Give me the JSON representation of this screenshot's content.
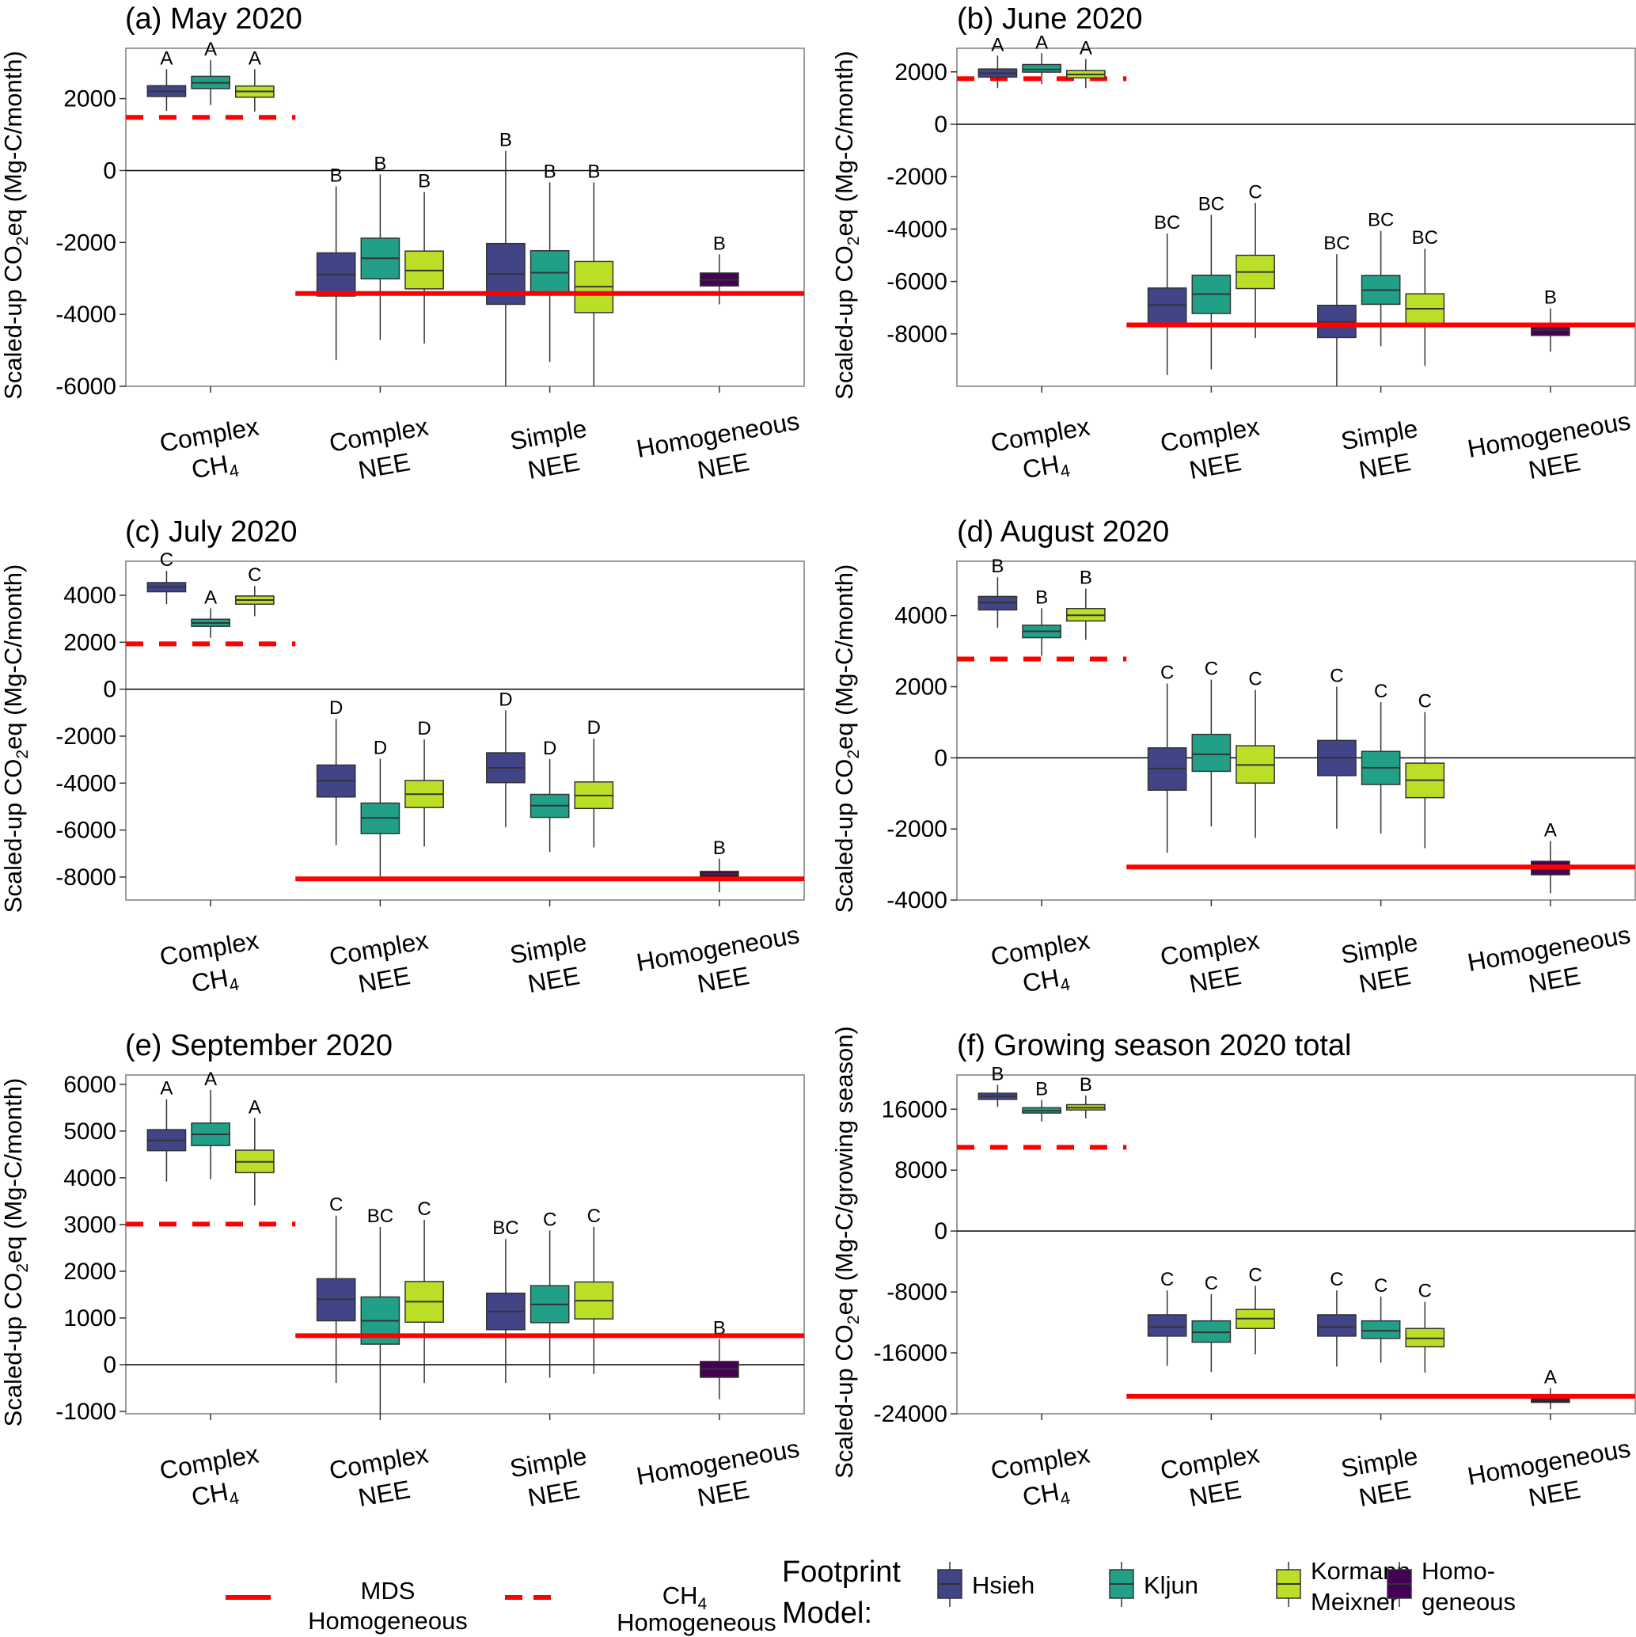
{
  "figure": {
    "legend": {
      "lines": [
        {
          "label_line1": "MDS",
          "label_line2": "Homogeneous",
          "style": "solid",
          "color": "#FF0000"
        },
        {
          "label_line1": "CH₄",
          "label_line2": "Homogeneous",
          "style": "dashed",
          "color": "#FF0000"
        }
      ],
      "title_line1": "Footprint",
      "title_line2": "Model:",
      "models": [
        {
          "label_line1": "Hsieh",
          "label_line2": "",
          "color": "#414487"
        },
        {
          "label_line1": "Kljun",
          "label_line2": "",
          "color": "#22A087"
        },
        {
          "label_line1": "Kormann",
          "label_line2": "Meixner",
          "color": "#BBDF27"
        },
        {
          "label_line1": "Homo-",
          "label_line2": "geneous",
          "color": "#440154"
        }
      ]
    },
    "colors": {
      "Hsieh": "#414487",
      "Kljun": "#22A087",
      "Kormann Meixner": "#BBDF27",
      "Homogeneous": "#440154",
      "reference_line": "#FF0000"
    }
  },
  "chart_data": [
    {
      "type": "boxplot",
      "title": "(a) May 2020",
      "ylabel": "Scaled-up CO2eq (Mg-C/month)",
      "ylabel_main": "Scaled-up CO",
      "ylabel_sub": "2",
      "ylabel_tail": "eq (Mg-C/month)",
      "ylim": [
        -6000,
        3400
      ],
      "yticks": [
        -6000,
        -4000,
        -2000,
        0,
        2000
      ],
      "categories": [
        [
          "Complex",
          "CH4"
        ],
        [
          "Complex",
          "NEE"
        ],
        [
          "Simple",
          "NEE"
        ],
        [
          "Homogeneous",
          "NEE"
        ]
      ],
      "ch4_homogeneous": 1480,
      "mds_homogeneous": -3420,
      "boxes": [
        {
          "category": 0,
          "model": "Hsieh",
          "min": 1660,
          "q1": 2060,
          "median": 2200,
          "q3": 2360,
          "max": 2820,
          "letter": "A"
        },
        {
          "category": 0,
          "model": "Kljun",
          "min": 1820,
          "q1": 2280,
          "median": 2440,
          "q3": 2620,
          "max": 3070,
          "letter": "A"
        },
        {
          "category": 0,
          "model": "Kormann Meixner",
          "min": 1640,
          "q1": 2040,
          "median": 2200,
          "q3": 2350,
          "max": 2820,
          "letter": "A"
        },
        {
          "category": 1,
          "model": "Hsieh",
          "min": -5270,
          "q1": -3490,
          "median": -2890,
          "q3": -2290,
          "max": -440,
          "letter": "B"
        },
        {
          "category": 1,
          "model": "Kljun",
          "min": -4710,
          "q1": -3010,
          "median": -2440,
          "q3": -1880,
          "max": -110,
          "letter": "B"
        },
        {
          "category": 1,
          "model": "Kormann Meixner",
          "min": -4810,
          "q1": -3290,
          "median": -2780,
          "q3": -2240,
          "max": -600,
          "letter": "B"
        },
        {
          "category": 2,
          "model": "Hsieh",
          "min": -6000,
          "q1": -3720,
          "median": -2880,
          "q3": -2030,
          "max": 550,
          "letter": "B"
        },
        {
          "category": 2,
          "model": "Kljun",
          "min": -5320,
          "q1": -3430,
          "median": -2840,
          "q3": -2230,
          "max": -330,
          "letter": "B"
        },
        {
          "category": 2,
          "model": "Kormann Meixner",
          "min": -6000,
          "q1": -3950,
          "median": -3230,
          "q3": -2530,
          "max": -330,
          "letter": "B"
        },
        {
          "category": 3,
          "model": "Homogeneous",
          "min": -3720,
          "q1": -3210,
          "median": -3040,
          "q3": -2850,
          "max": -2330,
          "letter": "B"
        }
      ]
    },
    {
      "type": "boxplot",
      "title": "(b) June 2020",
      "ylabel": "Scaled-up CO2eq (Mg-C/month)",
      "ylabel_main": "Scaled-up CO",
      "ylabel_sub": "2",
      "ylabel_tail": "eq (Mg-C/month)",
      "ylim": [
        -10000,
        2900
      ],
      "yticks": [
        -8000,
        -6000,
        -4000,
        -2000,
        0,
        2000
      ],
      "categories": [
        [
          "Complex",
          "CH4"
        ],
        [
          "Complex",
          "NEE"
        ],
        [
          "Simple",
          "NEE"
        ],
        [
          "Homogeneous",
          "NEE"
        ]
      ],
      "ch4_homogeneous": 1740,
      "mds_homogeneous": -7660,
      "boxes": [
        {
          "category": 0,
          "model": "Hsieh",
          "min": 1380,
          "q1": 1800,
          "median": 1950,
          "q3": 2110,
          "max": 2620,
          "letter": "A"
        },
        {
          "category": 0,
          "model": "Kljun",
          "min": 1540,
          "q1": 1990,
          "median": 2090,
          "q3": 2280,
          "max": 2710,
          "letter": "A"
        },
        {
          "category": 0,
          "model": "Kormann Meixner",
          "min": 1380,
          "q1": 1770,
          "median": 1900,
          "q3": 2050,
          "max": 2490,
          "letter": "A"
        },
        {
          "category": 1,
          "model": "Hsieh",
          "min": -9570,
          "q1": -7640,
          "median": -6900,
          "q3": -6250,
          "max": -4170,
          "letter": "BC"
        },
        {
          "category": 1,
          "model": "Kljun",
          "min": -9350,
          "q1": -7220,
          "median": -6480,
          "q3": -5760,
          "max": -3460,
          "letter": "BC"
        },
        {
          "category": 1,
          "model": "Kormann Meixner",
          "min": -8160,
          "q1": -6270,
          "median": -5640,
          "q3": -5000,
          "max": -3000,
          "letter": "C"
        },
        {
          "category": 2,
          "model": "Hsieh",
          "min": -10000,
          "q1": -8140,
          "median": -7550,
          "q3": -6910,
          "max": -4960,
          "letter": "BC"
        },
        {
          "category": 2,
          "model": "Kljun",
          "min": -8470,
          "q1": -6870,
          "median": -6330,
          "q3": -5770,
          "max": -4070,
          "letter": "BC"
        },
        {
          "category": 2,
          "model": "Kormann Meixner",
          "min": -9220,
          "q1": -7630,
          "median": -7040,
          "q3": -6470,
          "max": -4750,
          "letter": "BC"
        },
        {
          "category": 3,
          "model": "Homogeneous",
          "min": -8680,
          "q1": -8060,
          "median": -7850,
          "q3": -7600,
          "max": -7030,
          "letter": "B"
        }
      ]
    },
    {
      "type": "boxplot",
      "title": "(c) July 2020",
      "ylabel": "Scaled-up CO2eq (Mg-C/month)",
      "ylabel_main": "Scaled-up CO",
      "ylabel_sub": "2",
      "ylabel_tail": "eq (Mg-C/month)",
      "ylim": [
        -8980,
        5450
      ],
      "yticks": [
        -8000,
        -6000,
        -4000,
        -2000,
        0,
        2000,
        4000
      ],
      "categories": [
        [
          "Complex",
          "CH4"
        ],
        [
          "Complex",
          "NEE"
        ],
        [
          "Simple",
          "NEE"
        ],
        [
          "Homogeneous",
          "NEE"
        ]
      ],
      "ch4_homogeneous": 1930,
      "mds_homogeneous": -8080,
      "boxes": [
        {
          "category": 0,
          "model": "Hsieh",
          "min": 3620,
          "q1": 4150,
          "median": 4350,
          "q3": 4540,
          "max": 5040,
          "letter": "C"
        },
        {
          "category": 0,
          "model": "Kljun",
          "min": 2190,
          "q1": 2680,
          "median": 2820,
          "q3": 2980,
          "max": 3450,
          "letter": "A"
        },
        {
          "category": 0,
          "model": "Kormann Meixner",
          "min": 3110,
          "q1": 3620,
          "median": 3800,
          "q3": 3970,
          "max": 4400,
          "letter": "C"
        },
        {
          "category": 1,
          "model": "Hsieh",
          "min": -6640,
          "q1": -4590,
          "median": -3900,
          "q3": -3230,
          "max": -1260,
          "letter": "D"
        },
        {
          "category": 1,
          "model": "Kljun",
          "min": -8030,
          "q1": -6150,
          "median": -5480,
          "q3": -4850,
          "max": -2960,
          "letter": "D"
        },
        {
          "category": 1,
          "model": "Kormann Meixner",
          "min": -6700,
          "q1": -5040,
          "median": -4470,
          "q3": -3890,
          "max": -2140,
          "letter": "D"
        },
        {
          "category": 2,
          "model": "Hsieh",
          "min": -5880,
          "q1": -3980,
          "median": -3350,
          "q3": -2710,
          "max": -900,
          "letter": "D"
        },
        {
          "category": 2,
          "model": "Kljun",
          "min": -6940,
          "q1": -5460,
          "median": -4960,
          "q3": -4480,
          "max": -2980,
          "letter": "D"
        },
        {
          "category": 2,
          "model": "Kormann Meixner",
          "min": -6740,
          "q1": -5080,
          "median": -4530,
          "q3": -3950,
          "max": -2110,
          "letter": "D"
        },
        {
          "category": 3,
          "model": "Homogeneous",
          "min": -8650,
          "q1": -8000,
          "median": -7870,
          "q3": -7760,
          "max": -7220,
          "letter": "B"
        }
      ]
    },
    {
      "type": "boxplot",
      "title": "(d) August 2020",
      "ylabel": "Scaled-up CO2eq (Mg-C/month)",
      "ylabel_main": "Scaled-up CO",
      "ylabel_sub": "2",
      "ylabel_tail": "eq (Mg-C/month)",
      "ylim": [
        -4000,
        5530
      ],
      "yticks": [
        -4000,
        -2000,
        0,
        2000,
        4000
      ],
      "categories": [
        [
          "Complex",
          "CH4"
        ],
        [
          "Complex",
          "NEE"
        ],
        [
          "Simple",
          "NEE"
        ],
        [
          "Homogeneous",
          "NEE"
        ]
      ],
      "ch4_homogeneous": 2780,
      "mds_homogeneous": -3070,
      "boxes": [
        {
          "category": 0,
          "model": "Hsieh",
          "min": 3660,
          "q1": 4160,
          "median": 4370,
          "q3": 4540,
          "max": 5080,
          "letter": "B"
        },
        {
          "category": 0,
          "model": "Kljun",
          "min": 2870,
          "q1": 3380,
          "median": 3560,
          "q3": 3730,
          "max": 4210,
          "letter": "B"
        },
        {
          "category": 0,
          "model": "Kormann Meixner",
          "min": 3320,
          "q1": 3850,
          "median": 4010,
          "q3": 4200,
          "max": 4760,
          "letter": "B"
        },
        {
          "category": 1,
          "model": "Hsieh",
          "min": -2670,
          "q1": -910,
          "median": -300,
          "q3": 280,
          "max": 2090,
          "letter": "C"
        },
        {
          "category": 1,
          "model": "Kljun",
          "min": -1930,
          "q1": -380,
          "median": 100,
          "q3": 660,
          "max": 2200,
          "letter": "C"
        },
        {
          "category": 1,
          "model": "Kormann Meixner",
          "min": -2250,
          "q1": -710,
          "median": -200,
          "q3": 340,
          "max": 1910,
          "letter": "C"
        },
        {
          "category": 2,
          "model": "Hsieh",
          "min": -1990,
          "q1": -500,
          "median": 0,
          "q3": 490,
          "max": 2000,
          "letter": "C"
        },
        {
          "category": 2,
          "model": "Kljun",
          "min": -2130,
          "q1": -750,
          "median": -280,
          "q3": 180,
          "max": 1570,
          "letter": "C"
        },
        {
          "category": 2,
          "model": "Kormann Meixner",
          "min": -2540,
          "q1": -1120,
          "median": -630,
          "q3": -150,
          "max": 1290,
          "letter": "C"
        },
        {
          "category": 3,
          "model": "Homogeneous",
          "min": -3810,
          "q1": -3290,
          "median": -3110,
          "q3": -2910,
          "max": -2340,
          "letter": "A"
        }
      ]
    },
    {
      "type": "boxplot",
      "title": "(e) September 2020",
      "ylabel": "Scaled-up CO2eq (Mg-C/month)",
      "ylabel_main": "Scaled-up CO",
      "ylabel_sub": "2",
      "ylabel_tail": "eq (Mg-C/month)",
      "ylim": [
        -1050,
        6200
      ],
      "yticks": [
        -1000,
        0,
        1000,
        2000,
        3000,
        4000,
        5000,
        6000
      ],
      "categories": [
        [
          "Complex",
          "CH4"
        ],
        [
          "Complex",
          "NEE"
        ],
        [
          "Simple",
          "NEE"
        ],
        [
          "Homogeneous",
          "NEE"
        ]
      ],
      "ch4_homogeneous": 3010,
      "mds_homogeneous": 620,
      "boxes": [
        {
          "category": 0,
          "model": "Hsieh",
          "min": 3920,
          "q1": 4580,
          "median": 4800,
          "q3": 5030,
          "max": 5680,
          "letter": "A"
        },
        {
          "category": 0,
          "model": "Kljun",
          "min": 3970,
          "q1": 4690,
          "median": 4930,
          "q3": 5170,
          "max": 5880,
          "letter": "A"
        },
        {
          "category": 0,
          "model": "Kormann Meixner",
          "min": 3410,
          "q1": 4110,
          "median": 4340,
          "q3": 4590,
          "max": 5280,
          "letter": "A"
        },
        {
          "category": 1,
          "model": "Hsieh",
          "min": -390,
          "q1": 940,
          "median": 1400,
          "q3": 1840,
          "max": 3190,
          "letter": "C"
        },
        {
          "category": 1,
          "model": "Kljun",
          "min": -1050,
          "q1": 440,
          "median": 940,
          "q3": 1450,
          "max": 2950,
          "letter": "BC"
        },
        {
          "category": 1,
          "model": "Kormann Meixner",
          "min": -390,
          "q1": 910,
          "median": 1350,
          "q3": 1780,
          "max": 3100,
          "letter": "C"
        },
        {
          "category": 2,
          "model": "Hsieh",
          "min": -390,
          "q1": 750,
          "median": 1140,
          "q3": 1530,
          "max": 2690,
          "letter": "BC"
        },
        {
          "category": 2,
          "model": "Kljun",
          "min": -280,
          "q1": 900,
          "median": 1290,
          "q3": 1690,
          "max": 2870,
          "letter": "C"
        },
        {
          "category": 2,
          "model": "Kormann Meixner",
          "min": -200,
          "q1": 980,
          "median": 1370,
          "q3": 1770,
          "max": 2950,
          "letter": "C"
        },
        {
          "category": 3,
          "model": "Homogeneous",
          "min": -740,
          "q1": -270,
          "median": -90,
          "q3": 70,
          "max": 550,
          "letter": "B"
        }
      ]
    },
    {
      "type": "boxplot",
      "title": "(f) Growing season 2020 total",
      "ylabel": "Scaled-up CO2eq (Mg-C/growing season)",
      "ylabel_main": "Scaled-up CO",
      "ylabel_sub": "2",
      "ylabel_tail": "eq (Mg-C/growing season)",
      "ylim": [
        -24000,
        20500
      ],
      "yticks": [
        -24000,
        -16000,
        -8000,
        0,
        8000,
        16000
      ],
      "categories": [
        [
          "Complex",
          "CH4"
        ],
        [
          "Complex",
          "NEE"
        ],
        [
          "Simple",
          "NEE"
        ],
        [
          "Homogeneous",
          "NEE"
        ]
      ],
      "ch4_homogeneous": 11000,
      "mds_homogeneous": -21700,
      "boxes": [
        {
          "category": 0,
          "model": "Hsieh",
          "min": 16300,
          "q1": 17300,
          "median": 17700,
          "q3": 18100,
          "max": 19200,
          "letter": "B"
        },
        {
          "category": 0,
          "model": "Kljun",
          "min": 14400,
          "q1": 15500,
          "median": 15800,
          "q3": 16200,
          "max": 17200,
          "letter": "B"
        },
        {
          "category": 0,
          "model": "Kormann Meixner",
          "min": 14800,
          "q1": 15900,
          "median": 16200,
          "q3": 16600,
          "max": 17800,
          "letter": "B"
        },
        {
          "category": 1,
          "model": "Hsieh",
          "min": -17700,
          "q1": -13800,
          "median": -12600,
          "q3": -11000,
          "max": -7800,
          "letter": "C"
        },
        {
          "category": 1,
          "model": "Kljun",
          "min": -18500,
          "q1": -14600,
          "median": -13300,
          "q3": -11800,
          "max": -8300,
          "letter": "C"
        },
        {
          "category": 1,
          "model": "Kormann Meixner",
          "min": -16200,
          "q1": -12800,
          "median": -11500,
          "q3": -10300,
          "max": -7200,
          "letter": "C"
        },
        {
          "category": 2,
          "model": "Hsieh",
          "min": -17800,
          "q1": -13800,
          "median": -12600,
          "q3": -11000,
          "max": -7800,
          "letter": "C"
        },
        {
          "category": 2,
          "model": "Kljun",
          "min": -17300,
          "q1": -14100,
          "median": -13100,
          "q3": -11800,
          "max": -8600,
          "letter": "C"
        },
        {
          "category": 2,
          "model": "Kormann Meixner",
          "min": -18600,
          "q1": -15200,
          "median": -14100,
          "q3": -12800,
          "max": -9300,
          "letter": "C"
        },
        {
          "category": 3,
          "model": "Homogeneous",
          "min": -23400,
          "q1": -22500,
          "median": -22200,
          "q3": -21900,
          "max": -20600,
          "letter": "A"
        }
      ]
    }
  ]
}
